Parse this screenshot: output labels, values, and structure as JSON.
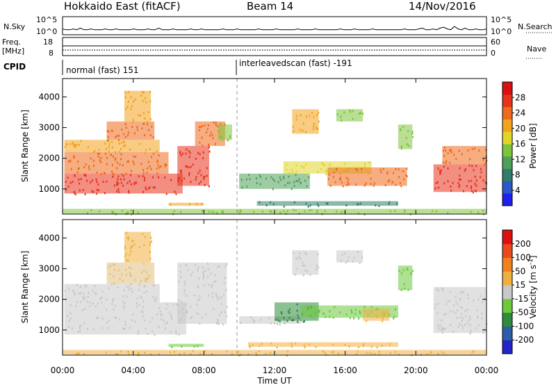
{
  "header": {
    "title_left": "Hokkaido East (fitACF)",
    "title_center": "Beam 14",
    "title_right": "14/Nov/2016"
  },
  "status_panel": {
    "nsky_label": "N.Sky",
    "nsearch_label": "N.Search",
    "nsky_ticks": [
      "10^5",
      "10^0"
    ],
    "nsearch_ticks": [
      "10^5",
      "10^0"
    ],
    "freq_label": "Freq.",
    "freq_unit": "[MHz]",
    "freq_ticks": [
      "18",
      "8"
    ],
    "nave_label": "Nave",
    "nave_ticks": [
      "60",
      "0"
    ],
    "cpid_label": "CPID",
    "cpid_segments": [
      {
        "name": "normal (fast) 151",
        "start_hour": 0.0
      },
      {
        "name": "interleavedscan (fast) -191",
        "start_hour": 10.0
      }
    ],
    "noise_pattern": [
      2,
      1,
      1,
      2,
      1,
      3,
      1,
      1,
      2,
      1,
      1,
      1,
      2,
      1,
      1,
      2,
      1,
      1,
      1,
      1,
      2,
      1,
      1,
      1,
      2,
      1,
      1,
      3,
      1,
      1,
      1,
      2,
      1,
      1,
      1,
      1,
      2,
      1,
      1,
      2,
      1,
      1,
      1,
      1,
      1,
      2,
      1,
      1,
      1,
      2,
      1,
      1,
      1,
      1,
      1,
      2,
      1,
      1,
      1,
      1,
      2,
      1,
      1,
      1,
      1,
      1,
      2,
      1,
      1,
      1,
      1,
      2,
      1,
      1,
      1,
      1,
      1,
      1,
      2,
      1,
      1,
      1,
      2,
      1,
      1,
      1,
      1,
      2,
      1,
      1,
      1,
      1,
      1,
      1,
      1,
      1,
      2,
      1,
      1,
      1,
      2,
      3,
      1,
      1,
      2,
      1,
      3,
      4,
      2,
      1,
      5,
      2,
      1,
      3,
      1,
      1,
      2,
      1,
      1,
      2
    ]
  },
  "chart_data": [
    {
      "type": "heatmap",
      "name": "power",
      "ylabel": "Slant Range [km]",
      "xlabel": "Time UT",
      "xlim_hours": [
        0,
        24
      ],
      "x_ticks": [
        "00:00",
        "04:00",
        "08:00",
        "12:00",
        "16:00",
        "20:00",
        "00:00"
      ],
      "ylim_km": [
        180,
        4600
      ],
      "y_ticks": [
        1000,
        2000,
        3000,
        4000
      ],
      "colorbar": {
        "label": "Power [dB]",
        "ticks": [
          "4",
          "8",
          "12",
          "16",
          "20",
          "24",
          "28"
        ],
        "colors": [
          "#1f1ff0",
          "#2d56c8",
          "#2f7d6a",
          "#4ea05a",
          "#7dc43a",
          "#e0d62a",
          "#f2a21c",
          "#ef6a1c",
          "#e8321c",
          "#d81010"
        ]
      },
      "bands": [
        {
          "t0": 0.1,
          "t1": 6.8,
          "r0": 850,
          "r1": 1500,
          "color": "#e8321c"
        },
        {
          "t0": 0.1,
          "t1": 6.0,
          "r0": 1500,
          "r1": 2200,
          "color": "#ef6a1c"
        },
        {
          "t0": 0.1,
          "t1": 5.5,
          "r0": 2200,
          "r1": 2600,
          "color": "#f2a21c"
        },
        {
          "t0": 2.5,
          "t1": 5.2,
          "r0": 2600,
          "r1": 3200,
          "color": "#ef6a1c"
        },
        {
          "t0": 3.5,
          "t1": 5.0,
          "r0": 3200,
          "r1": 4200,
          "color": "#f2a21c"
        },
        {
          "t0": 6.5,
          "t1": 8.3,
          "r0": 1100,
          "r1": 2400,
          "color": "#e8321c"
        },
        {
          "t0": 7.5,
          "t1": 9.2,
          "r0": 2400,
          "r1": 3200,
          "color": "#ef6a1c"
        },
        {
          "t0": 8.8,
          "t1": 9.6,
          "r0": 2600,
          "r1": 3100,
          "color": "#7dc43a"
        },
        {
          "t0": 10.0,
          "t1": 14.0,
          "r0": 1000,
          "r1": 1500,
          "color": "#4ea05a"
        },
        {
          "t0": 12.5,
          "t1": 17.5,
          "r0": 1500,
          "r1": 1900,
          "color": "#e0d62a"
        },
        {
          "t0": 15.0,
          "t1": 19.5,
          "r0": 1100,
          "r1": 1700,
          "color": "#ef6a1c"
        },
        {
          "t0": 13.0,
          "t1": 14.5,
          "r0": 2800,
          "r1": 3600,
          "color": "#f2a21c"
        },
        {
          "t0": 15.5,
          "t1": 17.0,
          "r0": 3200,
          "r1": 3600,
          "color": "#7dc43a"
        },
        {
          "t0": 19.0,
          "t1": 19.8,
          "r0": 2300,
          "r1": 3100,
          "color": "#7dc43a"
        },
        {
          "t0": 21.0,
          "t1": 24.0,
          "r0": 900,
          "r1": 1800,
          "color": "#e8321c"
        },
        {
          "t0": 21.5,
          "t1": 24.0,
          "r0": 1800,
          "r1": 2400,
          "color": "#ef6a1c"
        },
        {
          "t0": 6.0,
          "t1": 8.0,
          "r0": 450,
          "r1": 550,
          "color": "#f2a21c"
        },
        {
          "t0": 11.0,
          "t1": 19.0,
          "r0": 450,
          "r1": 600,
          "color": "#2f7d6a"
        },
        {
          "t0": 0.0,
          "t1": 24.0,
          "r0": 200,
          "r1": 350,
          "color": "#7dc43a"
        }
      ]
    },
    {
      "type": "heatmap",
      "name": "velocity",
      "ylabel": "Slant Range [km]",
      "xlabel": "Time UT",
      "xlim_hours": [
        0,
        24
      ],
      "x_ticks": [
        "00:00",
        "04:00",
        "08:00",
        "12:00",
        "16:00",
        "20:00",
        "00:00"
      ],
      "ylim_km": [
        180,
        4600
      ],
      "y_ticks": [
        1000,
        2000,
        3000,
        4000
      ],
      "colorbar": {
        "label": "Velocity [m s",
        "label_sup": "-1",
        "label_end": "]",
        "ticks": [
          "200",
          "100",
          "50",
          "15",
          "-15",
          "-50",
          "-100",
          "-200"
        ],
        "colors": [
          "#2424c8",
          "#2c5ea8",
          "#2e8a3c",
          "#6cc83c",
          "#c8c8c8",
          "#f0b040",
          "#f08020",
          "#e84a1c",
          "#e01010"
        ]
      },
      "bands": [
        {
          "t0": 0.1,
          "t1": 7.0,
          "r0": 850,
          "r1": 1900,
          "color": "#c8c8c8"
        },
        {
          "t0": 0.1,
          "t1": 5.5,
          "r0": 1900,
          "r1": 2500,
          "color": "#c8c8c8"
        },
        {
          "t0": 2.5,
          "t1": 5.2,
          "r0": 2500,
          "r1": 3200,
          "color": "#e0c080"
        },
        {
          "t0": 3.5,
          "t1": 5.0,
          "r0": 3200,
          "r1": 4200,
          "color": "#f0b040"
        },
        {
          "t0": 6.5,
          "t1": 9.3,
          "r0": 1200,
          "r1": 3200,
          "color": "#c8c8c8"
        },
        {
          "t0": 10.0,
          "t1": 13.5,
          "r0": 1200,
          "r1": 1450,
          "color": "#c8c8c8"
        },
        {
          "t0": 12.0,
          "t1": 14.5,
          "r0": 1300,
          "r1": 1900,
          "color": "#2e8a3c"
        },
        {
          "t0": 13.5,
          "t1": 19.0,
          "r0": 1400,
          "r1": 1800,
          "color": "#6cc83c"
        },
        {
          "t0": 17.0,
          "t1": 18.5,
          "r0": 1300,
          "r1": 1700,
          "color": "#f0b040"
        },
        {
          "t0": 13.0,
          "t1": 14.5,
          "r0": 2800,
          "r1": 3600,
          "color": "#c8c8c8"
        },
        {
          "t0": 15.5,
          "t1": 17.0,
          "r0": 3200,
          "r1": 3600,
          "color": "#c8c8c8"
        },
        {
          "t0": 19.0,
          "t1": 19.8,
          "r0": 2300,
          "r1": 3100,
          "color": "#6cc83c"
        },
        {
          "t0": 21.0,
          "t1": 24.0,
          "r0": 900,
          "r1": 2400,
          "color": "#c8c8c8"
        },
        {
          "t0": 6.0,
          "t1": 8.0,
          "r0": 450,
          "r1": 550,
          "color": "#6cc83c"
        },
        {
          "t0": 10.5,
          "t1": 19.0,
          "r0": 450,
          "r1": 600,
          "color": "#f0b040"
        },
        {
          "t0": 0.0,
          "t1": 24.0,
          "r0": 200,
          "r1": 350,
          "color": "#f0b040"
        }
      ]
    }
  ]
}
